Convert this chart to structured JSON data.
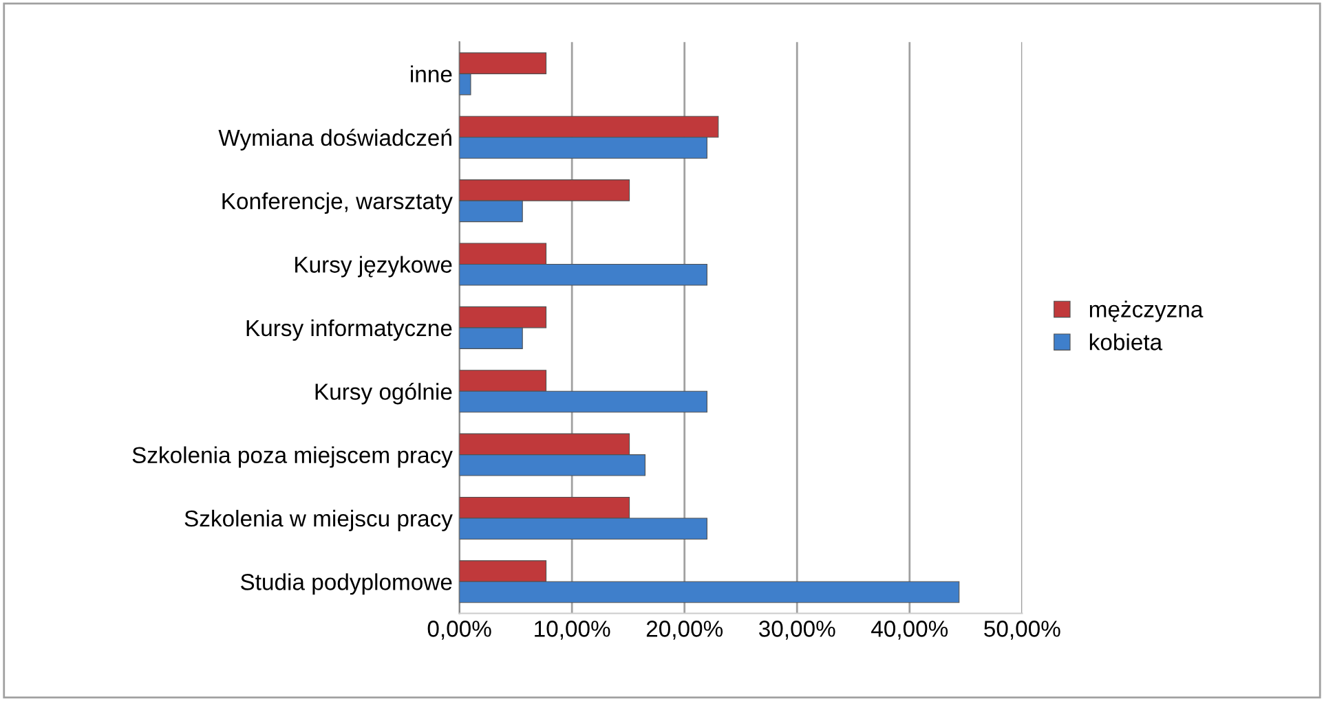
{
  "chart_data": {
    "type": "bar",
    "orientation": "horizontal",
    "categories": [
      "inne",
      "Wymiana doświadczeń",
      "Konferencje, warsztaty",
      "Kursy językowe",
      "Kursy informatyczne",
      "Kursy ogólnie",
      "Szkolenia poza miejscem pracy",
      "Szkolenia w miejscu pracy",
      "Studia podyplomowe"
    ],
    "series": [
      {
        "name": "mężczyzna",
        "color": "#c0393b",
        "values": [
          7.7,
          23.0,
          15.1,
          7.7,
          7.7,
          7.7,
          15.1,
          15.1,
          7.7
        ]
      },
      {
        "name": "kobieta",
        "color": "#3f7fcb",
        "values": [
          1.0,
          22.0,
          5.6,
          22.0,
          5.6,
          22.0,
          16.5,
          22.0,
          44.4
        ]
      }
    ],
    "xlim": [
      0,
      50
    ],
    "xticks": [
      {
        "value": 0,
        "label": "0,00%"
      },
      {
        "value": 10,
        "label": "10,00%"
      },
      {
        "value": 20,
        "label": "20,00%"
      },
      {
        "value": 30,
        "label": "30,00%"
      },
      {
        "value": 40,
        "label": "40,00%"
      },
      {
        "value": 50,
        "label": "50,00%"
      }
    ],
    "grid": "x",
    "legend": "right"
  }
}
